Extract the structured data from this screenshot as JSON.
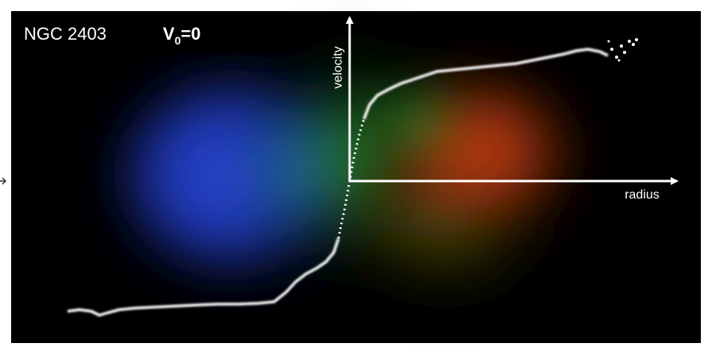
{
  "header": {
    "object": "NGC 2403",
    "condition": {
      "base": "V",
      "subscript": "0",
      "rest": "=0"
    }
  },
  "axes": {
    "vertical": "velocity",
    "horizontal": "radius"
  }
}
